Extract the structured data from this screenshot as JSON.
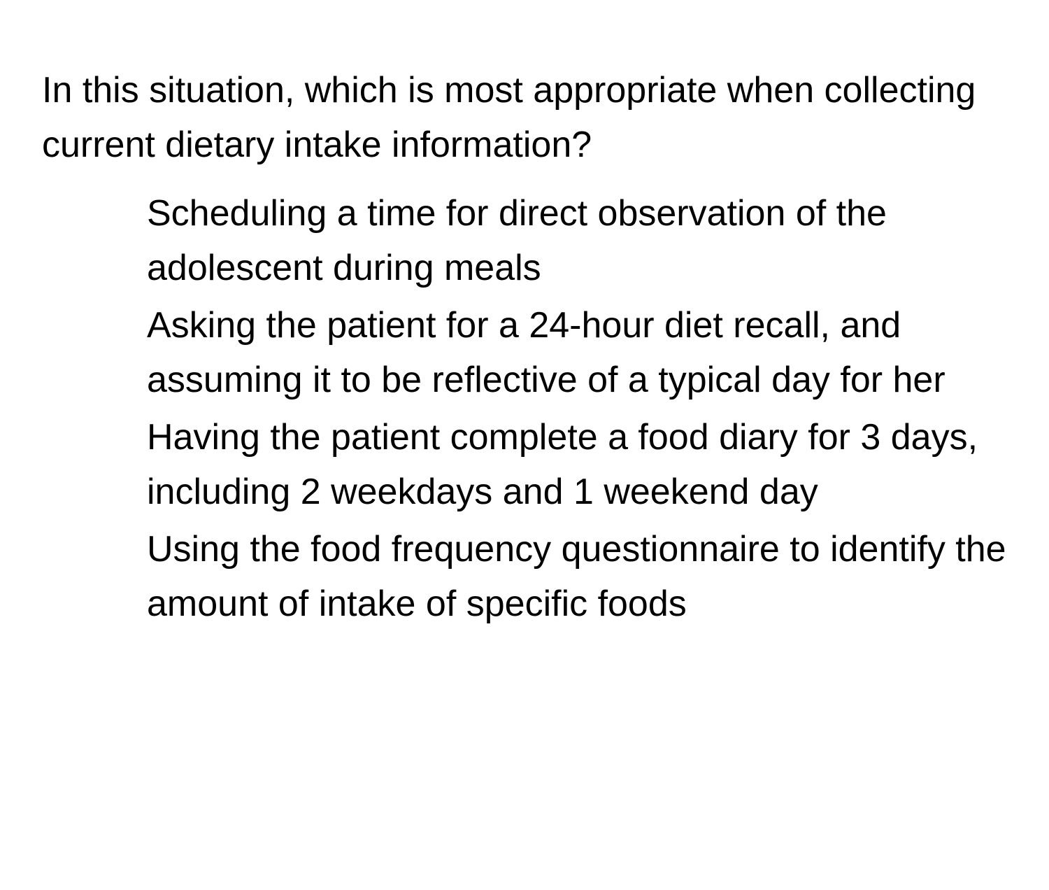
{
  "question": {
    "text": "In this situation, which is most appropriate when collecting current dietary intake information?"
  },
  "options": [
    {
      "text": "Scheduling a time for direct observation of the adolescent during meals"
    },
    {
      "text": "Asking the patient for a 24-hour diet recall, and assuming it to be reflective of a typical day for her"
    },
    {
      "text": "Having the patient complete a food diary for 3 days, including 2 weekdays and 1 weekend day"
    },
    {
      "text": "Using the food frequency questionnaire to identify the amount of intake of specific foods"
    }
  ],
  "styling": {
    "background_color": "#ffffff",
    "text_color": "#000000",
    "font_size": 52,
    "line_height": 1.5,
    "body_padding_top": 90,
    "body_padding_sides": 60,
    "options_indent": 150
  }
}
